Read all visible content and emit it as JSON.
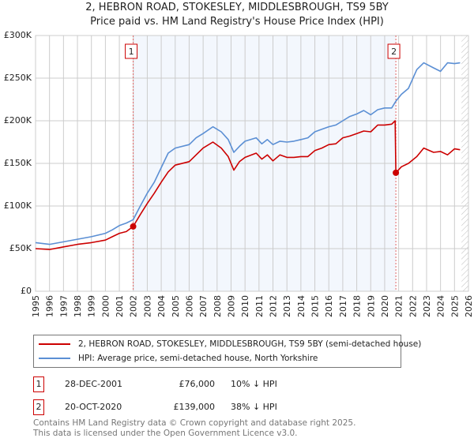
{
  "title_line1": "2, HEBRON ROAD, STOKESLEY, MIDDLESBROUGH, TS9 5BY",
  "title_line2": "Price paid vs. HM Land Registry's House Price Index (HPI)",
  "chart_data": {
    "type": "line",
    "xlim": [
      1995,
      2026
    ],
    "ylim": [
      0,
      300000
    ],
    "yticks": [
      0,
      50000,
      100000,
      150000,
      200000,
      250000,
      300000
    ],
    "ytick_labels": [
      "£0",
      "£50K",
      "£100K",
      "£150K",
      "£200K",
      "£250K",
      "£300K"
    ],
    "xticks": [
      "1995",
      "1996",
      "1997",
      "1998",
      "1999",
      "2000",
      "2001",
      "2002",
      "2003",
      "2004",
      "2005",
      "2006",
      "2007",
      "2008",
      "2009",
      "2010",
      "2011",
      "2012",
      "2013",
      "2014",
      "2015",
      "2016",
      "2017",
      "2018",
      "2019",
      "2020",
      "2021",
      "2022",
      "2023",
      "2024",
      "2025",
      "2026"
    ],
    "grid": true,
    "shaded_range": [
      2001.99,
      2020.8
    ],
    "hatched_from": 2025.5,
    "series": [
      {
        "name": "2, HEBRON ROAD, STOKESLEY, MIDDLESBROUGH, TS9 5BY (semi-detached house)",
        "color": "#cc0000",
        "x": [
          1995,
          1996,
          1997,
          1998,
          1999,
          2000,
          2000.5,
          2001,
          2001.5,
          2001.99,
          2002.5,
          2003,
          2003.5,
          2004,
          2004.5,
          2005,
          2006,
          2006.5,
          2007,
          2007.7,
          2008.3,
          2008.8,
          2009.2,
          2009.6,
          2010,
          2010.8,
          2011.2,
          2011.6,
          2012,
          2012.5,
          2013,
          2013.5,
          2014,
          2014.5,
          2015,
          2015.5,
          2016,
          2016.5,
          2017,
          2017.5,
          2018,
          2018.5,
          2019,
          2019.5,
          2020,
          2020.5,
          2020.75,
          2020.8,
          2021.2,
          2021.7,
          2022.3,
          2022.8,
          2023.5,
          2024,
          2024.5,
          2025,
          2025.4
        ],
        "y": [
          50000,
          49000,
          52000,
          55000,
          57000,
          60000,
          64000,
          68000,
          70000,
          76000,
          90000,
          103000,
          115000,
          128000,
          140000,
          148000,
          152000,
          160000,
          168000,
          175000,
          168000,
          158000,
          142000,
          152000,
          157000,
          162000,
          155000,
          160000,
          153000,
          160000,
          157000,
          157000,
          158000,
          158000,
          165000,
          168000,
          172000,
          173000,
          180000,
          182000,
          185000,
          188000,
          187000,
          195000,
          195000,
          196000,
          200000,
          139000,
          146000,
          150000,
          158000,
          168000,
          163000,
          164000,
          160000,
          167000,
          166000
        ]
      },
      {
        "name": "HPI: Average price, semi-detached house, North Yorkshire",
        "color": "#5b8fd4",
        "x": [
          1995,
          1996,
          1997,
          1998,
          1999,
          2000,
          2000.5,
          2001,
          2001.5,
          2001.99,
          2002.5,
          2003,
          2003.5,
          2004,
          2004.5,
          2005,
          2006,
          2006.5,
          2007,
          2007.7,
          2008.3,
          2008.8,
          2009.2,
          2009.6,
          2010,
          2010.8,
          2011.2,
          2011.6,
          2012,
          2012.5,
          2013,
          2013.5,
          2014,
          2014.5,
          2015,
          2015.5,
          2016,
          2016.5,
          2017,
          2017.5,
          2018,
          2018.5,
          2019,
          2019.5,
          2020,
          2020.5,
          2020.8,
          2021.2,
          2021.7,
          2022.3,
          2022.8,
          2023.5,
          2024,
          2024.5,
          2025,
          2025.4
        ],
        "y": [
          57000,
          55000,
          58000,
          61000,
          64000,
          68000,
          72000,
          77000,
          80000,
          84000,
          100000,
          115000,
          128000,
          145000,
          162000,
          168000,
          172000,
          180000,
          185000,
          193000,
          187000,
          178000,
          163000,
          170000,
          176000,
          180000,
          173000,
          178000,
          172000,
          176000,
          175000,
          176000,
          178000,
          180000,
          187000,
          190000,
          193000,
          195000,
          200000,
          205000,
          208000,
          212000,
          207000,
          213000,
          215000,
          215000,
          223000,
          231000,
          238000,
          260000,
          268000,
          262000,
          258000,
          268000,
          267000,
          268000
        ]
      }
    ],
    "markers": [
      {
        "label": "1",
        "x": 2001.99,
        "y": 76000
      },
      {
        "label": "2",
        "x": 2020.8,
        "y": 139000
      }
    ]
  },
  "legend": {
    "items": [
      "2, HEBRON ROAD, STOKESLEY, MIDDLESBROUGH, TS9 5BY (semi-detached house)",
      "HPI: Average price, semi-detached house, North Yorkshire"
    ]
  },
  "transactions": [
    {
      "num": "1",
      "date": "28-DEC-2001",
      "price": "£76,000",
      "hpi": "10% ↓ HPI"
    },
    {
      "num": "2",
      "date": "20-OCT-2020",
      "price": "£139,000",
      "hpi": "38% ↓ HPI"
    }
  ],
  "footer": {
    "line1": "Contains HM Land Registry data © Crown copyright and database right 2025.",
    "line2": "This data is licensed under the Open Government Licence v3.0."
  }
}
